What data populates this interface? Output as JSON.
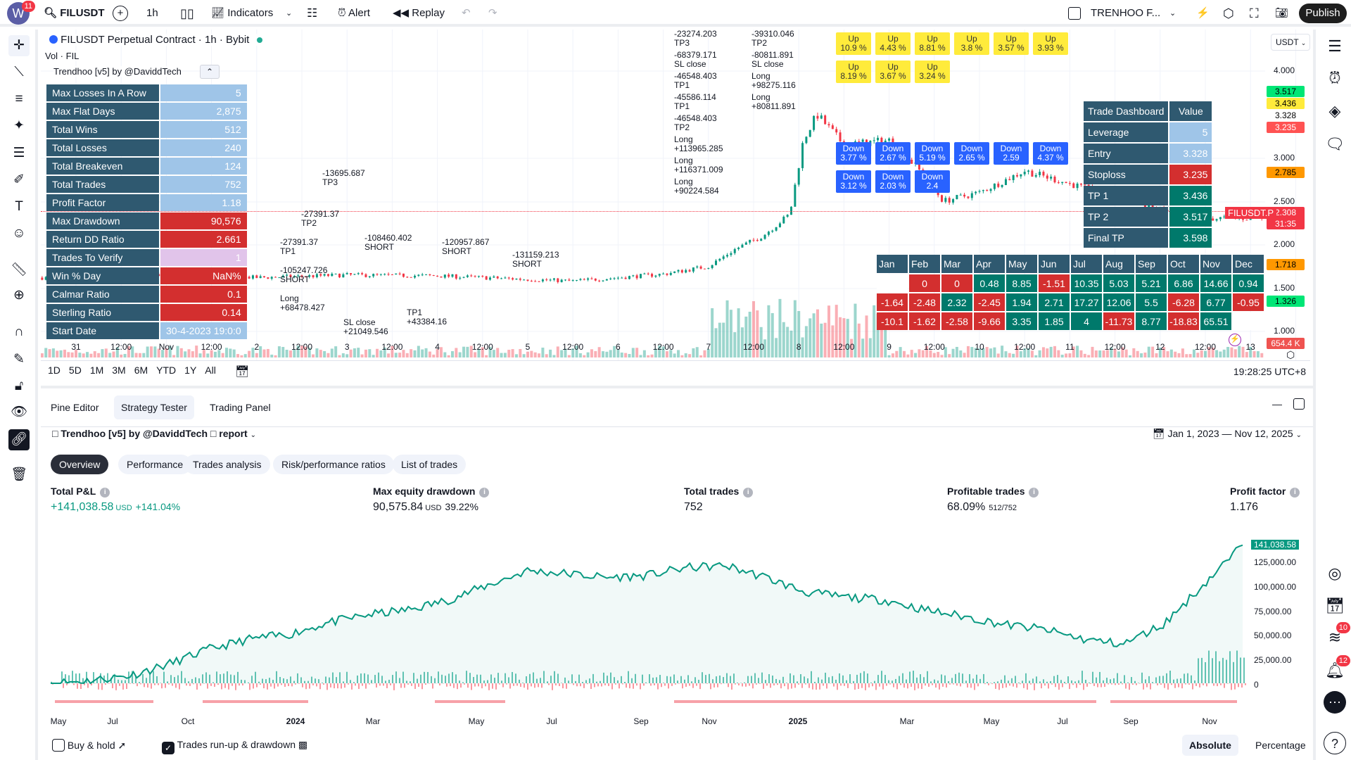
{
  "topbar": {
    "avatar_letter": "W",
    "avatar_badge": "11",
    "symbol": "FILUSDT",
    "interval": "1h",
    "indicators": "Indicators",
    "alert": "Alert",
    "replay": "Replay",
    "layout_name": "TRENHOO F...",
    "publish": "Publish"
  },
  "chart": {
    "legend_title": "FILUSDT Perpetual Contract · 1h · Bybit",
    "legend_volume": "Vol · FIL",
    "legend_indicator": "Trendhoo [v5] by @DaviddTech",
    "currency": "USDT",
    "price_labels": [
      "4.000",
      "3.000",
      "2.500",
      "2.000",
      "1.500",
      "1.000"
    ],
    "price_tags": [
      {
        "text": "3.517",
        "color": "#00e676"
      },
      {
        "text": "3.436",
        "color": "#ffeb3b"
      },
      {
        "text": "3.328",
        "color": "#ffffff"
      },
      {
        "text": "3.235",
        "color": "#ff5252"
      },
      {
        "text": "2.785",
        "color": "#ff9800"
      },
      {
        "text": "2.308",
        "color": "#f23645"
      },
      {
        "text": "31:35",
        "color": "#f23645"
      },
      {
        "text": "1.718",
        "color": "#ff9800"
      },
      {
        "text": "1.326",
        "color": "#00e676"
      },
      {
        "text": "654.4 K",
        "color": "#ef5350"
      }
    ],
    "symbol_tag": "FILUSDT.P",
    "time_labels": [
      "31",
      "12:00",
      "Nov",
      "12:00",
      "2",
      "12:00",
      "3",
      "12:00",
      "4",
      "12:00",
      "5",
      "12:00",
      "6",
      "12:00",
      "7",
      "12:00",
      "8",
      "12:00",
      "9",
      "12:00",
      "10",
      "12:00",
      "11",
      "12:00",
      "12",
      "12:00",
      "13"
    ],
    "ranges": [
      "1D",
      "5D",
      "1M",
      "3M",
      "6M",
      "YTD",
      "1Y",
      "All"
    ],
    "clock": "19:28:25 UTC+8"
  },
  "stats_table": [
    {
      "label": "Max Losses In A Row",
      "value": "5",
      "style": "v-blue"
    },
    {
      "label": "Max Flat Days",
      "value": "2,875",
      "style": "v-blue"
    },
    {
      "label": "Total Wins",
      "value": "512",
      "style": "v-blue"
    },
    {
      "label": "Total Losses",
      "value": "240",
      "style": "v-blue"
    },
    {
      "label": "Total Breakeven",
      "value": "124",
      "style": "v-blue"
    },
    {
      "label": "Total Trades",
      "value": "752",
      "style": "v-blue"
    },
    {
      "label": "Profit Factor",
      "value": "1.18",
      "style": "v-blue"
    },
    {
      "label": "Max Drawdown",
      "value": "90,576",
      "style": "v-red"
    },
    {
      "label": "Return DD Ratio",
      "value": "2.661",
      "style": "v-red"
    },
    {
      "label": "Trades To Verify",
      "value": "1",
      "style": "v-pink"
    },
    {
      "label": "Win % Day",
      "value": "NaN%",
      "style": "v-red"
    },
    {
      "label": "Calmar Ratio",
      "value": "0.1",
      "style": "v-red"
    },
    {
      "label": "Sterling Ratio",
      "value": "0.14",
      "style": "v-red"
    },
    {
      "label": "Start Date",
      "value": "30-4-2023 19:0:0",
      "style": "v-blue"
    }
  ],
  "trade_dashboard": {
    "header": [
      "Trade Dashboard",
      "Value"
    ],
    "rows": [
      {
        "label": "Leverage",
        "value": "5",
        "style": "v-blue"
      },
      {
        "label": "Entry",
        "value": "3.328",
        "style": "v-blue"
      },
      {
        "label": "Stoploss",
        "value": "3.235",
        "style": "v-red"
      },
      {
        "label": "TP 1",
        "value": "3.436",
        "style": "v-green"
      },
      {
        "label": "TP 2",
        "value": "3.517",
        "style": "v-green"
      },
      {
        "label": "Final TP",
        "value": "3.598",
        "style": "v-green"
      }
    ]
  },
  "monthly_returns": {
    "months": [
      "Jan",
      "Feb",
      "Mar",
      "Apr",
      "May",
      "Jun",
      "Jul",
      "Aug",
      "Sep",
      "Oct",
      "Nov",
      "Dec"
    ],
    "rows": [
      [
        "",
        "0",
        "0",
        "0.48",
        "8.85",
        "-1.51",
        "10.35",
        "5.03",
        "5.21",
        "6.86",
        "14.66",
        "0.94"
      ],
      [
        "-1.64",
        "-2.48",
        "2.32",
        "-2.45",
        "1.94",
        "2.71",
        "17.27",
        "12.06",
        "5.5",
        "-6.28",
        "6.77",
        "-0.95"
      ],
      [
        "-10.1",
        "-1.62",
        "-2.58",
        "-9.66",
        "3.35",
        "1.85",
        "4",
        "-11.73",
        "8.77",
        "-18.83",
        "65.51",
        ""
      ]
    ]
  },
  "signals_up": [
    {
      "t": "Up",
      "v": "10.9 %"
    },
    {
      "t": "Up",
      "v": "4.43 %"
    },
    {
      "t": "Up",
      "v": "8.81 %"
    },
    {
      "t": "Up",
      "v": "3.8 %"
    },
    {
      "t": "Up",
      "v": "3.57 %"
    },
    {
      "t": "Up",
      "v": "3.93 %"
    },
    {
      "t": "Up",
      "v": "8.19 %"
    },
    {
      "t": "Up",
      "v": "3.67 %"
    },
    {
      "t": "Up",
      "v": "3.24 %"
    }
  ],
  "signals_down": [
    {
      "t": "Down",
      "v": "3.77 %"
    },
    {
      "t": "Down",
      "v": "2.67 %"
    },
    {
      "t": "Down",
      "v": "5.19 %"
    },
    {
      "t": "Down",
      "v": "2.65 %"
    },
    {
      "t": "Down",
      "v": "2.59"
    },
    {
      "t": "Down",
      "v": "4.37 %"
    },
    {
      "t": "Down",
      "v": "3.12 %"
    },
    {
      "t": "Down",
      "v": "2.03 %"
    },
    {
      "t": "Down",
      "v": "2.4"
    }
  ],
  "trade_labels": [
    {
      "a": "-13695.687",
      "b": "TP3"
    },
    {
      "a": "-27391.37",
      "b": "TP2"
    },
    {
      "a": "-27391.37",
      "b": "TP1"
    },
    {
      "a": "-105247.726",
      "b": "SHORT"
    },
    {
      "a": "-108460.402",
      "b": "SHORT"
    },
    {
      "a": "-120957.867",
      "b": "SHORT"
    },
    {
      "a": "-131159.213",
      "b": "SHORT"
    },
    {
      "a": "Long",
      "b": "+68478.427"
    },
    {
      "a": "TP1",
      "b": "+43384.16"
    },
    {
      "a": "SL close",
      "b": "+21049.546"
    },
    {
      "a": "-23274.203",
      "b": "TP3"
    },
    {
      "a": "-68379.171",
      "b": "SL close"
    },
    {
      "a": "-46548.403",
      "b": "TP1"
    },
    {
      "a": "-45586.114",
      "b": "TP1"
    },
    {
      "a": "-46548.403",
      "b": "TP2"
    },
    {
      "a": "Long",
      "b": "+113965.285"
    },
    {
      "a": "Long",
      "b": "+116371.009"
    },
    {
      "a": "Long",
      "b": "+90224.584"
    },
    {
      "a": "Long",
      "b": "+98275.116"
    },
    {
      "a": "Long",
      "b": "+80811.891"
    },
    {
      "a": "-39310.046",
      "b": "TP2"
    },
    {
      "a": "-80811.891",
      "b": "SL close"
    }
  ],
  "bottom": {
    "tabs": [
      "Pine Editor",
      "Strategy Tester",
      "Trading Panel"
    ],
    "strategy_title": "Trendhoo [v5] by @DaviddTech",
    "strategy_suffix": "report",
    "date_range": "Jan 1, 2023 — Nov 12, 2025",
    "pills": [
      "Overview",
      "Performance",
      "Trades analysis",
      "Risk/performance ratios",
      "List of trades"
    ],
    "metrics": [
      {
        "label": "Total P&L",
        "value": "+141,038.58",
        "unit": "USD",
        "extra": "+141.04%"
      },
      {
        "label": "Max equity drawdown",
        "value": "90,575.84",
        "unit": "USD",
        "extra": "39.22%"
      },
      {
        "label": "Total trades",
        "value": "752",
        "unit": "",
        "extra": ""
      },
      {
        "label": "Profitable trades",
        "value": "68.09%",
        "unit": "",
        "extra": "512/752"
      },
      {
        "label": "Profit factor",
        "value": "1.176",
        "unit": "",
        "extra": ""
      }
    ],
    "equity_axis": [
      "125,000.00",
      "100,000.00",
      "75,000.00",
      "50,000.00",
      "25,000.00",
      "0"
    ],
    "equity_last": "141,038.58",
    "date_labels": [
      "May",
      "Jul",
      "Oct",
      "2024",
      "Mar",
      "May",
      "Jul",
      "Sep",
      "Nov",
      "2025",
      "Mar",
      "May",
      "Jul",
      "Sep",
      "Nov"
    ],
    "equity_curve_usd": [
      0,
      3000,
      8000,
      20000,
      35000,
      45000,
      50000,
      62000,
      70000,
      75000,
      85000,
      100000,
      115000,
      112000,
      108000,
      110000,
      118000,
      120000,
      108000,
      93000,
      88000,
      85000,
      75000,
      68000,
      60000,
      55000,
      45000,
      40000,
      60000,
      100000,
      141038.58
    ],
    "buy_hold": "Buy & hold",
    "runup": "Trades run-up & drawdown",
    "absolute": "Absolute",
    "percentage": "Percentage"
  },
  "rightbar_badges": {
    "feed": "10",
    "alerts": "12"
  }
}
